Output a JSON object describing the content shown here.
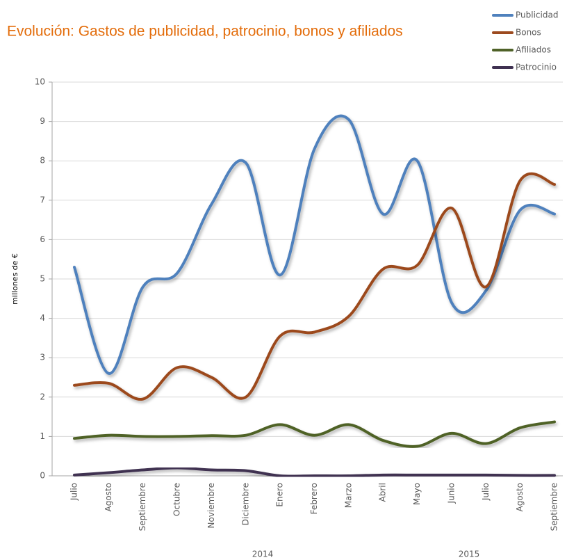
{
  "chart_data": {
    "type": "line",
    "title": "Evolución: Gastos de publicidad, patrocinio, bonos y afiliados",
    "ylabel": "millones de €",
    "categories": [
      "Julio",
      "Agosto",
      "Septiembre",
      "Octubre",
      "Noviembre",
      "Diciembre",
      "Enero",
      "Febrero",
      "Marzo",
      "Abril",
      "Mayo",
      "Junio",
      "Julio",
      "Agosto",
      "Septiembre"
    ],
    "x_groups": [
      "2014",
      "2015"
    ],
    "series": [
      {
        "name": "Publicidad",
        "color": "#4f81bd",
        "values": [
          5.3,
          2.6,
          4.8,
          5.15,
          6.9,
          7.95,
          5.1,
          8.3,
          9.05,
          6.65,
          8.0,
          4.4,
          4.7,
          6.75,
          6.65
        ]
      },
      {
        "name": "Bonos",
        "color": "#9c4a1f",
        "values": [
          2.3,
          2.35,
          1.95,
          2.75,
          2.5,
          2.0,
          3.55,
          3.65,
          4.05,
          5.25,
          5.35,
          6.8,
          4.8,
          7.5,
          7.4
        ]
      },
      {
        "name": "Afiliados",
        "color": "#4f6228",
        "values": [
          0.95,
          1.03,
          1.0,
          1.0,
          1.02,
          1.03,
          1.3,
          1.03,
          1.3,
          0.9,
          0.75,
          1.08,
          0.82,
          1.22,
          1.37
        ]
      },
      {
        "name": "Patrocinio",
        "color": "#3f3151",
        "values": [
          0.02,
          0.08,
          0.15,
          0.2,
          0.15,
          0.13,
          0,
          0,
          0,
          0.02,
          0.02,
          0.02,
          0.02,
          0.01,
          0.01
        ]
      }
    ],
    "ylim": [
      0,
      10
    ],
    "yticks": [
      0,
      1,
      2,
      3,
      4,
      5,
      6,
      7,
      8,
      9,
      10
    ],
    "grid": true,
    "smooth": true,
    "legend": "top-right"
  }
}
